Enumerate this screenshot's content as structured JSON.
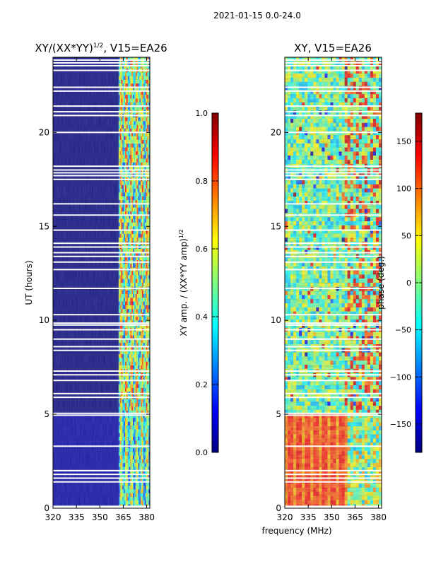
{
  "suptitle": "2021-01-15 0.0-24.0",
  "xlabel": "frequency (MHz)",
  "colors": {
    "jet": [
      "#00007f",
      "#0000ff",
      "#007fff",
      "#00ffff",
      "#7fff7f",
      "#ffff00",
      "#ff7f00",
      "#ff0000",
      "#7f0000"
    ],
    "gap": "#ffffff"
  },
  "chart_data": [
    {
      "type": "heatmap",
      "name": "amplitude",
      "title_main": "XY/(XX*YY)",
      "title_sup": "1/2",
      "title_tail": ", V15=EA26",
      "ylabel": "UT (hours)",
      "xlim": [
        320,
        382
      ],
      "ylim": [
        0,
        24
      ],
      "xticks": [
        {
          "v": 320,
          "label": "320"
        },
        {
          "v": 335,
          "label": "335"
        },
        {
          "v": 350,
          "label": "350"
        },
        {
          "v": 365,
          "label": "365"
        },
        {
          "v": 380,
          "label": "380"
        }
      ],
      "yticks": [
        {
          "v": 0,
          "label": "0"
        },
        {
          "v": 5,
          "label": "5"
        },
        {
          "v": 10,
          "label": "10"
        },
        {
          "v": 15,
          "label": "15"
        },
        {
          "v": 20,
          "label": "20"
        }
      ],
      "colorbar": {
        "label_main": "XY amp. / (XX*YY amp)",
        "label_sup": "1/2",
        "range": [
          0,
          1
        ],
        "ticks": [
          {
            "v": 0,
            "label": "0.0"
          },
          {
            "v": 0.2,
            "label": "0.2"
          },
          {
            "v": 0.4,
            "label": "0.4"
          },
          {
            "v": 0.6,
            "label": "0.6"
          },
          {
            "v": 0.8,
            "label": "0.8"
          },
          {
            "v": 1.0,
            "label": "1.0"
          }
        ]
      }
    },
    {
      "type": "heatmap",
      "name": "phase",
      "title_main": "XY, V15=EA26",
      "title_sup": "",
      "title_tail": "",
      "ylabel": "",
      "xlim": [
        320,
        382
      ],
      "ylim": [
        0,
        24
      ],
      "xticks": [
        {
          "v": 320,
          "label": "320"
        },
        {
          "v": 335,
          "label": "335"
        },
        {
          "v": 350,
          "label": "350"
        },
        {
          "v": 365,
          "label": "365"
        },
        {
          "v": 380,
          "label": "380"
        }
      ],
      "yticks": [
        {
          "v": 0,
          "label": "0"
        },
        {
          "v": 5,
          "label": "5"
        },
        {
          "v": 10,
          "label": "10"
        },
        {
          "v": 15,
          "label": "15"
        },
        {
          "v": 20,
          "label": "20"
        }
      ],
      "colorbar": {
        "label_main": "phase (deg.)",
        "label_sup": "",
        "range": [
          -180,
          180
        ],
        "ticks": [
          {
            "v": -150,
            "label": "−150"
          },
          {
            "v": -100,
            "label": "−100"
          },
          {
            "v": -50,
            "label": "−50"
          },
          {
            "v": 0,
            "label": "0"
          },
          {
            "v": 50,
            "label": "50"
          },
          {
            "v": 100,
            "label": "100"
          },
          {
            "v": 150,
            "label": "150"
          }
        ]
      }
    }
  ],
  "flagged_ut_hours": [
    0.05,
    0.1,
    1.4,
    1.6,
    1.8,
    2.0,
    3.3,
    4.95,
    5.05,
    5.9,
    6.1,
    6.8,
    7.1,
    7.3,
    8.4,
    8.6,
    9.0,
    9.5,
    9.75,
    9.85,
    10.3,
    11.7,
    12.7,
    13.1,
    13.4,
    13.6,
    13.9,
    14.1,
    14.8,
    15.6,
    16.2,
    17.5,
    17.7,
    17.85,
    18.0,
    18.2,
    20.0,
    20.9,
    21.1,
    21.4,
    22.2,
    22.4,
    23.3,
    23.55,
    23.7,
    23.85
  ]
}
